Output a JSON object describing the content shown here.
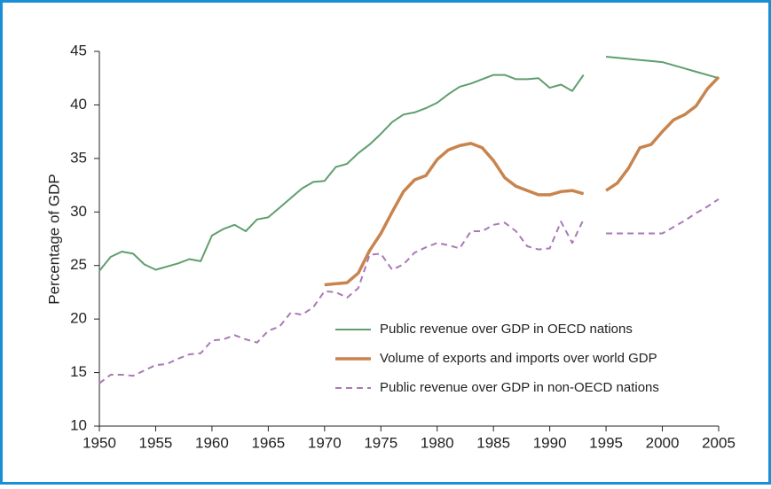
{
  "chart_data": {
    "type": "line",
    "y_label": "Percentage of GDP",
    "x": [
      1950,
      1951,
      1952,
      1953,
      1954,
      1955,
      1956,
      1957,
      1958,
      1959,
      1960,
      1961,
      1962,
      1963,
      1964,
      1965,
      1966,
      1967,
      1968,
      1969,
      1970,
      1971,
      1972,
      1973,
      1974,
      1975,
      1976,
      1977,
      1978,
      1979,
      1980,
      1981,
      1982,
      1983,
      1984,
      1985,
      1986,
      1987,
      1988,
      1989,
      1990,
      1991,
      1992,
      1993,
      1994,
      1995,
      1996,
      1997,
      1998,
      1999,
      2000,
      2001,
      2002,
      2003,
      2004,
      2005
    ],
    "series": [
      {
        "name": "Public revenue over GDP in OECD nations",
        "color": "#5f9e6e",
        "dashed": false,
        "width": 2,
        "values": [
          24.5,
          25.8,
          26.3,
          26.1,
          25.1,
          24.6,
          24.9,
          25.2,
          25.6,
          25.4,
          27.8,
          28.4,
          28.8,
          28.2,
          29.3,
          29.5,
          30.4,
          31.3,
          32.2,
          32.8,
          32.9,
          34.2,
          34.5,
          35.5,
          36.3,
          37.3,
          38.4,
          39.1,
          39.3,
          39.7,
          40.2,
          41.0,
          41.7,
          42.0,
          42.4,
          42.8,
          42.8,
          42.4,
          42.4,
          42.5,
          41.6,
          41.9,
          41.3,
          42.8,
          null,
          44.5,
          44.4,
          44.3,
          44.2,
          44.1,
          44.0,
          43.7,
          43.4,
          43.1,
          42.8,
          42.5
        ]
      },
      {
        "name": "Volume of exports and imports over world GDP",
        "color": "#c8844e",
        "dashed": false,
        "width": 3.5,
        "values": [
          null,
          null,
          null,
          null,
          null,
          null,
          null,
          null,
          null,
          null,
          null,
          null,
          null,
          null,
          null,
          null,
          null,
          null,
          null,
          null,
          23.2,
          23.3,
          23.4,
          24.3,
          26.4,
          28.0,
          30.0,
          31.9,
          33.0,
          33.4,
          34.9,
          35.8,
          36.2,
          36.4,
          36.0,
          34.8,
          33.2,
          32.4,
          32.0,
          31.6,
          31.6,
          31.9,
          32.0,
          31.7,
          null,
          32.0,
          32.7,
          34.1,
          36.0,
          36.3,
          37.5,
          38.6,
          39.1,
          39.9,
          41.5,
          42.6
        ]
      },
      {
        "name": "Public revenue over GDP in non-OECD nations",
        "color": "#a978b8",
        "dashed": true,
        "width": 2,
        "values": [
          14.0,
          14.8,
          14.8,
          14.7,
          15.2,
          15.7,
          15.8,
          16.3,
          16.7,
          16.8,
          18.0,
          18.1,
          18.5,
          18.1,
          17.8,
          18.9,
          19.3,
          20.6,
          20.4,
          21.1,
          22.6,
          22.5,
          22.0,
          22.9,
          26.0,
          26.1,
          24.6,
          25.1,
          26.2,
          26.7,
          27.1,
          26.9,
          26.6,
          28.2,
          28.2,
          28.8,
          29.0,
          28.2,
          26.8,
          26.5,
          26.6,
          29.1,
          27.1,
          29.3,
          null,
          28.0,
          28.0,
          28.0,
          28.0,
          28.0,
          28.0,
          28.6,
          29.2,
          29.9,
          30.5,
          31.2
        ]
      }
    ],
    "xlim": [
      1950,
      2005
    ],
    "xticks": [
      1950,
      1955,
      1960,
      1965,
      1970,
      1975,
      1980,
      1985,
      1990,
      1995,
      2000,
      2005
    ],
    "ylim": [
      10,
      45
    ],
    "yticks": [
      10,
      15,
      20,
      25,
      30,
      35,
      40,
      45
    ]
  }
}
